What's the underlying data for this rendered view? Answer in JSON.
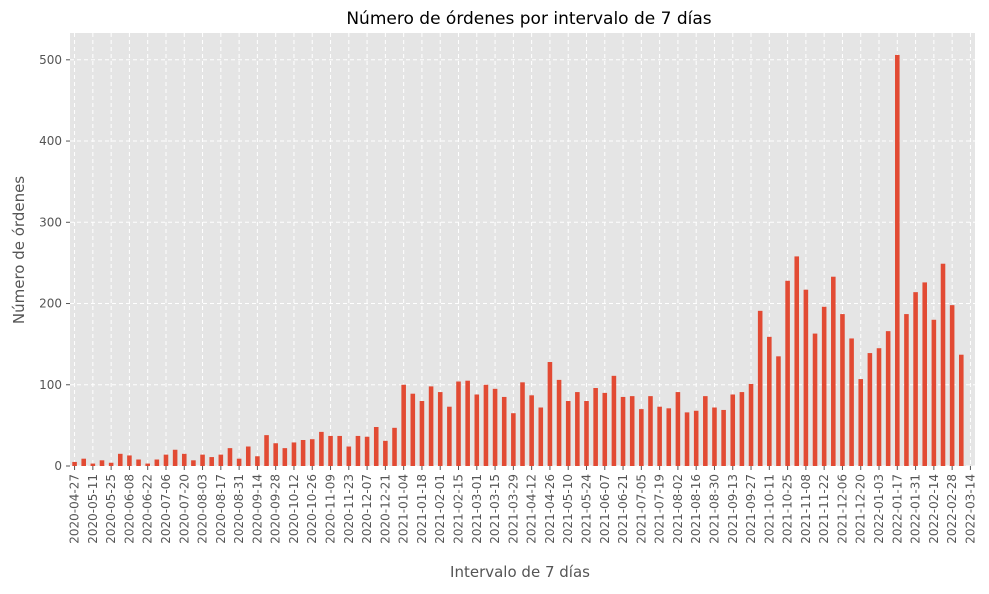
{
  "chart_data": {
    "type": "bar",
    "title": "Número de órdenes por intervalo de 7 días",
    "xlabel": "Intervalo de 7 días",
    "ylabel": "Número de órdenes",
    "color": "#E24A33",
    "grid": true,
    "ylim": [
      0,
      533
    ],
    "yticks": [
      0,
      100,
      200,
      300,
      400,
      500
    ],
    "categories": [
      "2020-04-27",
      null,
      "2020-05-11",
      null,
      "2020-05-25",
      null,
      "2020-06-08",
      null,
      "2020-06-22",
      null,
      "2020-07-06",
      null,
      "2020-07-20",
      null,
      "2020-08-03",
      null,
      "2020-08-17",
      null,
      "2020-08-31",
      null,
      "2020-09-14",
      null,
      "2020-09-28",
      null,
      "2020-10-12",
      null,
      "2020-10-26",
      null,
      "2020-11-09",
      null,
      "2020-11-23",
      null,
      "2020-12-07",
      null,
      "2020-12-21",
      null,
      "2021-01-04",
      null,
      "2021-01-18",
      null,
      "2021-02-01",
      null,
      "2021-02-15",
      null,
      "2021-03-01",
      null,
      "2021-03-15",
      null,
      "2021-03-29",
      null,
      "2021-04-12",
      null,
      "2021-04-26",
      null,
      "2021-05-10",
      null,
      "2021-05-24",
      null,
      "2021-06-07",
      null,
      "2021-06-21",
      null,
      "2021-07-05",
      null,
      "2021-07-19",
      null,
      "2021-08-02",
      null,
      "2021-08-16",
      null,
      "2021-08-30",
      null,
      "2021-09-13",
      null,
      "2021-09-27",
      null,
      "2021-10-11",
      null,
      "2021-10-25",
      null,
      "2021-11-08",
      null,
      "2021-11-22",
      null,
      "2021-12-06",
      null,
      "2021-12-20",
      null,
      "2022-01-03",
      null,
      "2022-01-17",
      null,
      "2022-01-31",
      null,
      "2022-02-14",
      null,
      "2022-02-28",
      null,
      "2022-03-14"
    ],
    "values": [
      5,
      9,
      3,
      7,
      4,
      15,
      13,
      8,
      3,
      8,
      14,
      20,
      15,
      7,
      14,
      11,
      14,
      22,
      9,
      24,
      12,
      38,
      28,
      22,
      29,
      32,
      33,
      42,
      37,
      37,
      24,
      37,
      36,
      48,
      31,
      47,
      100,
      89,
      80,
      98,
      91,
      73,
      104,
      105,
      88,
      100,
      95,
      85,
      65,
      103,
      87,
      72,
      128,
      106,
      80,
      91,
      80,
      96,
      90,
      111,
      85,
      86,
      70,
      86,
      73,
      71,
      91,
      66,
      68,
      86,
      72,
      69,
      88,
      91,
      101,
      191,
      159,
      135,
      228,
      258,
      217,
      163,
      196,
      233,
      187,
      157,
      107,
      139,
      145,
      166,
      506,
      187,
      214,
      226,
      180,
      249,
      198,
      137,
      0
    ]
  }
}
